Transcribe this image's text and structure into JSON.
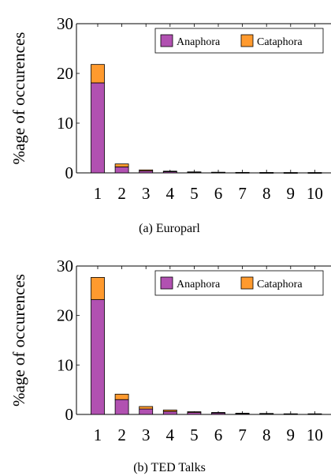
{
  "colors": {
    "anaphora": "#b151b1",
    "cataphora": "#ff9a2e",
    "stroke": "#000000"
  },
  "chart_data": [
    {
      "type": "bar",
      "stacked": true,
      "caption": "(a) Europarl",
      "ylabel": "%age of occurences",
      "xlabel": "",
      "categories": [
        "1",
        "2",
        "3",
        "4",
        "5",
        "6",
        "7",
        "8",
        "9",
        "10"
      ],
      "series": [
        {
          "name": "Anaphora",
          "values": [
            18.1,
            1.2,
            0.4,
            0.25,
            0.15,
            0.1,
            0.08,
            0.06,
            0.05,
            0.05
          ]
        },
        {
          "name": "Cataphora",
          "values": [
            3.7,
            0.6,
            0.2,
            0.1,
            0.05,
            0.03,
            0.02,
            0.02,
            0.01,
            0.01
          ]
        }
      ],
      "ylim": [
        0,
        30
      ],
      "yticks": [
        0,
        10,
        20,
        30
      ],
      "legend": "top-right",
      "grid": false
    },
    {
      "type": "bar",
      "stacked": true,
      "caption": "(b) TED Talks",
      "ylabel": "%age of occurences",
      "xlabel": "",
      "categories": [
        "1",
        "2",
        "3",
        "4",
        "5",
        "6",
        "7",
        "8",
        "9",
        "10"
      ],
      "series": [
        {
          "name": "Anaphora",
          "values": [
            23.2,
            3.0,
            1.1,
            0.6,
            0.4,
            0.3,
            0.2,
            0.15,
            0.1,
            0.1
          ]
        },
        {
          "name": "Cataphora",
          "values": [
            4.5,
            1.1,
            0.5,
            0.3,
            0.15,
            0.1,
            0.05,
            0.05,
            0.03,
            0.03
          ]
        }
      ],
      "ylim": [
        0,
        30
      ],
      "yticks": [
        0,
        10,
        20,
        30
      ],
      "legend": "top-right",
      "grid": false
    }
  ]
}
